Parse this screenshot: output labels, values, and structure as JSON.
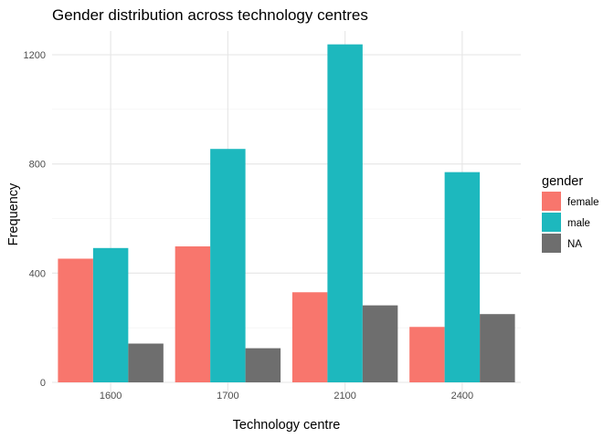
{
  "chart_data": {
    "type": "bar",
    "title": "Gender distribution across technology centres",
    "xlabel": "Technology centre",
    "ylabel": "Frequency",
    "categories": [
      "1600",
      "1700",
      "2100",
      "2400"
    ],
    "series": [
      {
        "name": "female",
        "color": "#F8766D",
        "values": [
          453,
          498,
          330,
          203
        ]
      },
      {
        "name": "male",
        "color": "#1DB8BE",
        "values": [
          492,
          855,
          1238,
          770
        ]
      },
      {
        "name": "NA",
        "color": "#6E6E6E",
        "values": [
          142,
          125,
          282,
          250
        ]
      }
    ],
    "ylim": [
      0,
      1300
    ],
    "yticks": [
      0,
      400,
      800,
      1200
    ],
    "grid": true,
    "legend": {
      "title": "gender",
      "placement": "right"
    }
  }
}
